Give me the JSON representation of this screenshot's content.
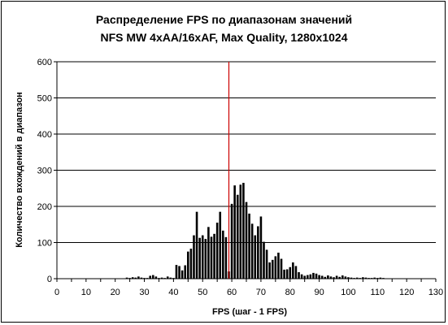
{
  "chart_data": {
    "type": "bar",
    "title_line_1": "Распределение FPS по диапазонам значений",
    "title_line_2": "NFS MW 4xAA/16xAF, Max Quality, 1280x1024",
    "xlabel": "FPS (шаг - 1 FPS)",
    "ylabel": "Количество вхождений в диапазон",
    "xlim": [
      0,
      130
    ],
    "ylim": [
      0,
      600
    ],
    "x_ticks": [
      0,
      10,
      20,
      30,
      40,
      50,
      60,
      70,
      80,
      90,
      100,
      110,
      120,
      130
    ],
    "y_ticks": [
      0,
      100,
      200,
      300,
      400,
      500,
      600
    ],
    "grid": "horizontal",
    "bar_color": "#000000",
    "reference_line": {
      "x": 59,
      "color": "#cc0000"
    },
    "series": [
      {
        "x": [
          24,
          25,
          26,
          27,
          28,
          29,
          30,
          31,
          32,
          33,
          34,
          35,
          36,
          37,
          38,
          39,
          40,
          41,
          42,
          43,
          44,
          45,
          46,
          47,
          48,
          49,
          50,
          51,
          52,
          53,
          54,
          55,
          56,
          57,
          58,
          59,
          60,
          61,
          62,
          63,
          64,
          65,
          66,
          67,
          68,
          69,
          70,
          71,
          72,
          73,
          74,
          75,
          76,
          77,
          78,
          79,
          80,
          81,
          82,
          83,
          84,
          85,
          86,
          87,
          88,
          89,
          90,
          91,
          92,
          93,
          94,
          95,
          96,
          97,
          98,
          99,
          100,
          101,
          102,
          103,
          104,
          105,
          106,
          107,
          108,
          109,
          110,
          111,
          112
        ],
        "values": [
          3,
          2,
          4,
          3,
          6,
          3,
          2,
          2,
          8,
          10,
          6,
          2,
          3,
          2,
          6,
          3,
          2,
          38,
          35,
          23,
          37,
          75,
          83,
          120,
          185,
          113,
          120,
          110,
          143,
          116,
          124,
          155,
          185,
          133,
          115,
          20,
          207,
          258,
          232,
          260,
          265,
          212,
          180,
          152,
          120,
          145,
          172,
          102,
          80,
          45,
          52,
          62,
          72,
          55,
          25,
          26,
          32,
          45,
          35,
          18,
          12,
          8,
          10,
          12,
          16,
          14,
          10,
          8,
          5,
          9,
          6,
          4,
          8,
          5,
          9,
          6,
          4,
          3,
          2,
          3,
          2,
          4,
          3,
          2,
          2,
          3,
          2,
          3,
          2
        ]
      }
    ]
  }
}
